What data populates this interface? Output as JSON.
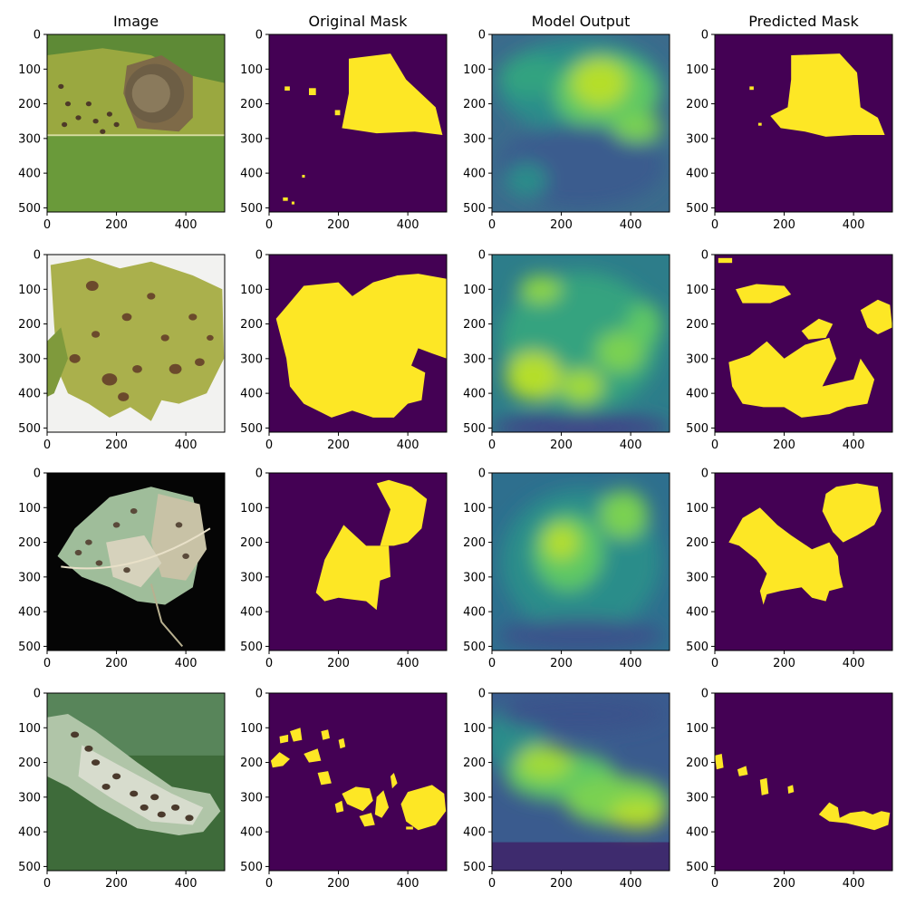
{
  "figure": {
    "columns": [
      "Image",
      "Original Mask",
      "Model Output",
      "Predicted Mask"
    ],
    "rows": 4
  },
  "chart_data": {
    "type": "heatmap",
    "image_size": [
      512,
      512
    ],
    "xticks": [
      0,
      200,
      400
    ],
    "yticks": [
      0,
      100,
      200,
      300,
      400,
      500
    ],
    "xlim": [
      0,
      512
    ],
    "ylim": [
      512,
      0
    ],
    "colormap": "viridis",
    "mask_colors": {
      "background": "#440154",
      "foreground": "#fde725"
    }
  }
}
